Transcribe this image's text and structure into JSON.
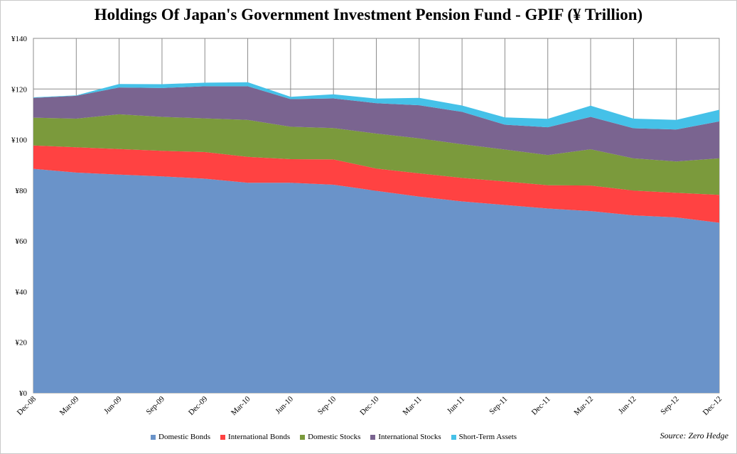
{
  "chart_data": {
    "type": "area",
    "stacked": true,
    "title": "Holdings Of Japan's Government Investment Pension Fund - GPIF (¥ Trillion)",
    "xlabel": "",
    "ylabel": "",
    "ylim": [
      0,
      140
    ],
    "yticks": [
      0,
      20,
      40,
      60,
      80,
      100,
      120,
      140
    ],
    "y_tick_labels": [
      "¥0",
      "¥20",
      "¥40",
      "¥60",
      "¥80",
      "¥100",
      "¥120",
      "¥140"
    ],
    "grid": true,
    "legend_position": "bottom",
    "categories": [
      "Dec-08",
      "Mar-09",
      "Jun-09",
      "Sep-09",
      "Dec-09",
      "Mar-10",
      "Jun-10",
      "Sep-10",
      "Dec-10",
      "Mar-11",
      "Jun-11",
      "Sep-11",
      "Dec-11",
      "Mar-12",
      "Jun-12",
      "Sep-12",
      "Dec-12"
    ],
    "series": [
      {
        "name": "Domestic Bonds",
        "color": "#6a93c9",
        "values": [
          88.5,
          87.0,
          86.2,
          85.5,
          84.6,
          83.0,
          83.0,
          82.2,
          79.8,
          77.5,
          75.6,
          74.2,
          72.8,
          71.8,
          70.1,
          69.3,
          67.2
        ]
      },
      {
        "name": "International Bonds",
        "color": "#ff4242",
        "values": [
          9.2,
          10.0,
          10.1,
          10.1,
          10.5,
          10.2,
          9.3,
          10.0,
          8.8,
          9.2,
          9.3,
          9.3,
          9.2,
          10.1,
          9.8,
          9.7,
          11.0
        ]
      },
      {
        "name": "Domestic Stocks",
        "color": "#7b9a3c",
        "values": [
          11.0,
          11.3,
          13.7,
          13.4,
          13.3,
          14.6,
          12.8,
          12.4,
          13.8,
          13.8,
          13.3,
          12.6,
          11.9,
          14.3,
          12.7,
          12.4,
          14.4
        ]
      },
      {
        "name": "International Stocks",
        "color": "#7a6490",
        "values": [
          7.8,
          9.0,
          10.6,
          11.4,
          12.7,
          13.3,
          10.9,
          11.7,
          12.0,
          13.1,
          12.8,
          9.8,
          11.0,
          12.8,
          11.9,
          12.6,
          14.6
        ]
      },
      {
        "name": "Short-Term Assets",
        "color": "#45c1e8",
        "values": [
          0.2,
          0.2,
          1.4,
          1.5,
          1.4,
          1.6,
          0.9,
          1.6,
          1.8,
          2.9,
          2.5,
          2.9,
          3.3,
          4.4,
          3.8,
          3.8,
          4.6
        ]
      }
    ],
    "source": "Source: Zero Hedge"
  }
}
